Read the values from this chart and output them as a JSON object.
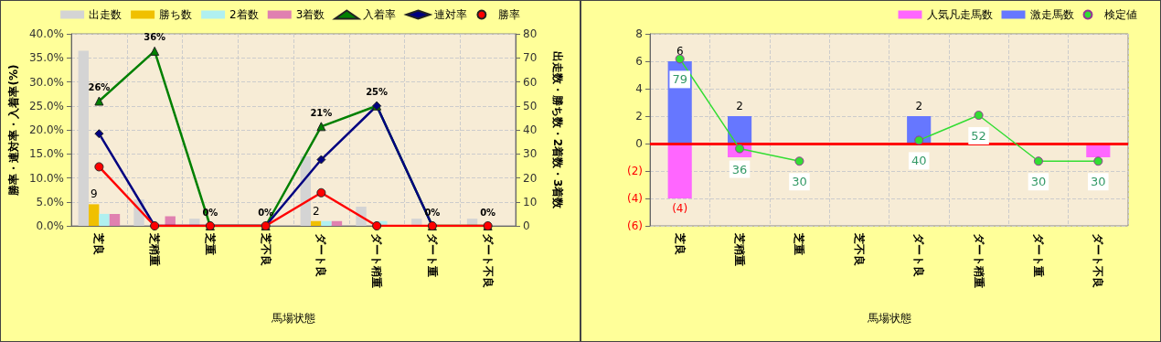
{
  "chart_data": [
    {
      "type": "bar",
      "xlabel": "馬場状態",
      "ylabel": "勝率・連対率・入着率(%)",
      "y2label": "出走数・勝ち数・2着数・3着数",
      "categories": [
        "芝良",
        "芝稍重",
        "芝重",
        "芝不良",
        "ダート良",
        "ダート稍重",
        "ダート重",
        "ダート不良"
      ],
      "series": [
        {
          "name": "出走数",
          "axis": "y2",
          "color": "#d4d4d4",
          "values": [
            73,
            11,
            3,
            0,
            29,
            8,
            3,
            3
          ]
        },
        {
          "name": "勝ち数",
          "axis": "y2",
          "color": "#f0c000",
          "values": [
            9,
            0,
            0,
            0,
            2,
            0,
            0,
            0
          ],
          "value_labels": [
            "9",
            null,
            null,
            null,
            "2",
            null,
            null,
            null
          ]
        },
        {
          "name": "2着数",
          "axis": "y2",
          "color": "#b0f0f0",
          "values": [
            5,
            0,
            0,
            0,
            2,
            2,
            0,
            0
          ]
        },
        {
          "name": "3着数",
          "axis": "y2",
          "color": "#e080b0",
          "values": [
            5,
            4,
            0,
            0,
            2,
            0,
            0,
            0
          ]
        },
        {
          "name": "入着率",
          "type": "line",
          "marker": "triangle",
          "color": "#008000",
          "values": [
            26.0,
            36.4,
            0,
            0,
            20.7,
            25.0,
            0,
            0
          ],
          "value_labels": [
            "26%",
            "36%",
            "0%",
            "0%",
            "21%",
            "25%",
            "0%",
            "0%"
          ]
        },
        {
          "name": "連対率",
          "type": "line",
          "marker": "diamond",
          "color": "#000080",
          "values": [
            19.2,
            0,
            0,
            0,
            13.8,
            25.0,
            0,
            null
          ]
        },
        {
          "name": "勝率",
          "type": "line",
          "marker": "circle",
          "color": "#ff0000",
          "values": [
            12.3,
            0,
            0,
            0,
            6.9,
            0,
            0,
            0
          ]
        }
      ],
      "ylim": [
        0,
        40
      ],
      "yticks": [
        {
          "value": 0,
          "label": "0.0%"
        },
        {
          "value": 5,
          "label": "5.0%"
        },
        {
          "value": 10,
          "label": "10.0%"
        },
        {
          "value": 15,
          "label": "15.0%"
        },
        {
          "value": 20,
          "label": "20.0%"
        },
        {
          "value": 25,
          "label": "25.0%"
        },
        {
          "value": 30,
          "label": "30.0%"
        },
        {
          "value": 35,
          "label": "35.0%"
        },
        {
          "value": 40,
          "label": "40.0%"
        }
      ],
      "y2lim": [
        0,
        80
      ],
      "y2ticks": [
        0,
        10,
        20,
        30,
        40,
        50,
        60,
        70,
        80
      ],
      "grid": true,
      "legend": "top"
    },
    {
      "type": "bar",
      "xlabel": "馬場状態",
      "stacked": true,
      "categories": [
        "芝良",
        "芝稍重",
        "芝重",
        "芝不良",
        "ダート良",
        "ダート稍重",
        "ダート重",
        "ダート不良"
      ],
      "series": [
        {
          "name": "人気凡走馬数",
          "color": "#ff66ff",
          "values": [
            -4,
            -1,
            0,
            0,
            0,
            0,
            0,
            -1
          ],
          "value_labels": [
            "(4)",
            null,
            null,
            null,
            null,
            null,
            null,
            null
          ]
        },
        {
          "name": "激走馬数",
          "color": "#6677ff",
          "values": [
            6,
            2,
            0,
            0,
            2,
            0,
            0,
            0
          ],
          "value_labels": [
            "6",
            "2",
            null,
            null,
            "2",
            null,
            null,
            null
          ]
        },
        {
          "name": "検定値",
          "type": "line",
          "marker": "circle",
          "axis": "y2",
          "color": "#33dd33",
          "values": [
            79,
            36,
            30,
            null,
            40,
            52,
            30,
            30
          ],
          "value_labels": [
            "79",
            "36",
            "30",
            null,
            "40",
            "52",
            "30",
            "30"
          ]
        }
      ],
      "ylim": [
        -6,
        8
      ],
      "yticks": [
        {
          "value": -6,
          "label": "(6)"
        },
        {
          "value": -4,
          "label": "(4)"
        },
        {
          "value": -2,
          "label": "(2)"
        },
        0,
        2,
        4,
        6,
        8
      ],
      "y2lim": [
        -1,
        91
      ],
      "ref_lines": [
        {
          "axis": "y",
          "value": 0,
          "color": "#ff0000"
        }
      ],
      "grid": true,
      "legend": "top right"
    }
  ]
}
